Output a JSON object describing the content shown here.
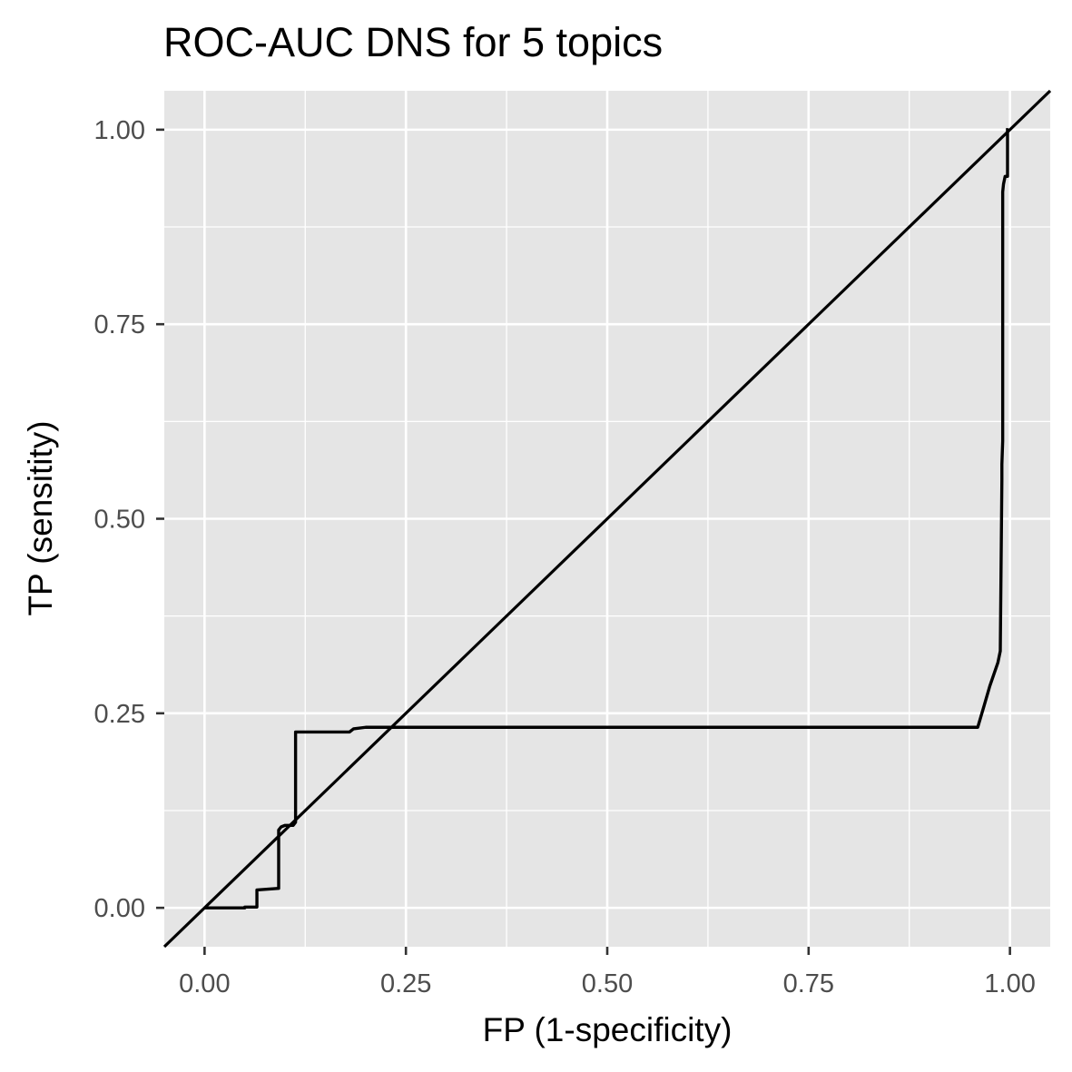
{
  "chart_data": {
    "type": "line",
    "title": "ROC-AUC DNS for 5 topics",
    "xlabel": "FP (1-specificity)",
    "ylabel": "TP (sensitity)",
    "xlim": [
      -0.05,
      1.05
    ],
    "ylim": [
      -0.05,
      1.05
    ],
    "x_ticks": [
      0.0,
      0.25,
      0.5,
      0.75,
      1.0
    ],
    "x_tick_labels": [
      "0.00",
      "0.25",
      "0.50",
      "0.75",
      "1.00"
    ],
    "y_ticks": [
      0.0,
      0.25,
      0.5,
      0.75,
      1.0
    ],
    "y_tick_labels": [
      "0.00",
      "0.25",
      "0.50",
      "0.75",
      "1.00"
    ],
    "grid": true,
    "legend": "none",
    "series": [
      {
        "x": [
          0.0,
          0.05,
          0.05,
          0.065,
          0.065,
          0.092,
          0.092,
          0.095,
          0.1,
          0.11,
          0.113,
          0.113,
          0.12,
          0.18,
          0.185,
          0.2,
          0.4,
          0.6,
          0.8,
          0.96,
          0.968,
          0.975,
          0.98,
          0.985,
          0.988,
          0.99,
          0.99,
          0.991,
          0.991,
          0.992,
          0.994,
          0.997,
          0.997,
          0.995,
          0.995
        ],
        "y": [
          0.0,
          0.0,
          0.001,
          0.001,
          0.023,
          0.025,
          0.1,
          0.104,
          0.106,
          0.106,
          0.11,
          0.226,
          0.226,
          0.226,
          0.23,
          0.232,
          0.232,
          0.232,
          0.232,
          0.232,
          0.26,
          0.285,
          0.3,
          0.315,
          0.33,
          0.55,
          0.57,
          0.6,
          0.92,
          0.93,
          0.94,
          0.94,
          1.0,
          1.0,
          1.0
        ],
        "color": "#000000"
      },
      {
        "x": [
          -0.05,
          1.05
        ],
        "y": [
          -0.05,
          1.05
        ],
        "color": "#000000"
      }
    ]
  }
}
